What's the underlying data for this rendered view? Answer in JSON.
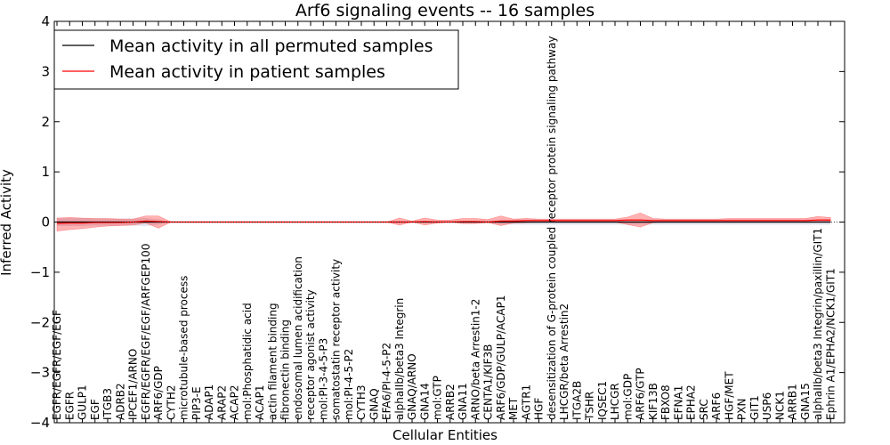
{
  "chart_data": {
    "type": "line",
    "title": "Arf6 signaling events -- 16 samples",
    "xlabel": "Cellular Entities",
    "ylabel": "Inferred Activity",
    "ylim": [
      -4,
      4
    ],
    "yticks": [
      -4,
      -3,
      -2,
      -1,
      0,
      1,
      2,
      3,
      4
    ],
    "legend_position": "top-left",
    "categories": [
      "EGFR/EGFR/EGF/EGF",
      "EGFR",
      "GULP1",
      "EGF",
      "ITGB3",
      "ADRB2",
      "IPCEF1/ARNO",
      "EGFR/EGFR/EGF/EGF/ARFGEP100",
      "ARF6/GDP",
      "CYTH2",
      "microtubule-based process",
      "PIP3-E",
      "ADAP1",
      "ARAP2",
      "ACAP2",
      "mol:Phosphatidic acid",
      "ACAP1",
      "actin filament binding",
      "fibronectin binding",
      "endosomal lumen acidification",
      "receptor agonist activity",
      "mol:PI-3-4-5-P3",
      "somatostatin receptor activity",
      "mol:PI-4-5-P2",
      "CYTH3",
      "GNAQ",
      "EFA6/PI-4-5-P2",
      "alphaIIb/beta3 Integrin",
      "GNAQ/ARNO",
      "GNA14",
      "mol:GTP",
      "ARRB2",
      "GNA11",
      "ARNO/beta Arrestin1-2",
      "CENTA1/KIF3B",
      "ARF6/GDP/GULP/ACAP1",
      "MET",
      "AGTR1",
      "HGF",
      "desensitization of G-protein coupled receptor protein signaling pathway",
      "LHCGR/beta Arrestin2",
      "ITGA2B",
      "TSHR",
      "IQSEC1",
      "LHCGR",
      "mol:GDP",
      "ARF6/GTP",
      "KIF13B",
      "FBXO8",
      "EFNA1",
      "EPHA2",
      "SRC",
      "ARF6",
      "HGF/MET",
      "PXN",
      "GIT1",
      "USP6",
      "NCK1",
      "ARRB1",
      "GNA15",
      "alphaIIb/beta3 Integrin/paxillin/GIT1",
      "Ephrin A1/EPHA2/NCK1/GIT1"
    ],
    "series": [
      {
        "name": "Mean activity in all permuted samples",
        "color": "#000000",
        "values": [
          0,
          0,
          0,
          0,
          0,
          0,
          0,
          0,
          0,
          0,
          0,
          0,
          0,
          0,
          0,
          0,
          0,
          0,
          0,
          0,
          0,
          0,
          0,
          0,
          0,
          0,
          0,
          0,
          0,
          0,
          0,
          0,
          0,
          0,
          0,
          0,
          0,
          0,
          0,
          0,
          0,
          0,
          0,
          0,
          0,
          0,
          0,
          0,
          0,
          0,
          0,
          0,
          0,
          0,
          0,
          0,
          0,
          0,
          0,
          0,
          0,
          0
        ]
      },
      {
        "name": "Mean activity in patient samples",
        "color": "#ff0000",
        "values": [
          -0.03,
          -0.02,
          -0.02,
          -0.01,
          -0.01,
          -0.01,
          0.0,
          0.02,
          0.01,
          0,
          0,
          0,
          0,
          0,
          0,
          0,
          0,
          0,
          0,
          0,
          0,
          0,
          0,
          0,
          0,
          0,
          0,
          0.0,
          0,
          0.01,
          0,
          0,
          0.01,
          0.01,
          0,
          0.02,
          0.02,
          0.03,
          0.03,
          0.03,
          0.03,
          0.03,
          0.03,
          0.03,
          0.03,
          0.04,
          0.04,
          0.03,
          0.03,
          0.03,
          0.03,
          0.03,
          0.03,
          0.03,
          0.03,
          0.03,
          0.03,
          0.03,
          0.03,
          0.03,
          0.04,
          0.04
        ],
        "band_lower": [
          -0.18,
          -0.15,
          -0.13,
          -0.1,
          -0.08,
          -0.07,
          -0.06,
          -0.02,
          -0.12,
          0,
          0,
          0,
          0,
          0,
          0,
          0,
          0,
          0,
          0,
          0,
          0,
          0,
          0,
          0,
          0,
          0,
          0,
          -0.06,
          0,
          -0.06,
          -0.02,
          0,
          -0.03,
          -0.03,
          -0.01,
          -0.07,
          -0.02,
          -0.01,
          0,
          0,
          0,
          0,
          0,
          0,
          0,
          -0.05,
          -0.1,
          -0.01,
          0,
          0,
          0,
          0,
          0,
          0,
          0,
          0,
          0,
          0,
          0,
          0,
          0,
          0
        ],
        "band_upper": [
          0.08,
          0.09,
          0.08,
          0.07,
          0.07,
          0.06,
          0.06,
          0.12,
          0.12,
          0,
          0,
          0,
          0,
          0,
          0,
          0,
          0,
          0,
          0,
          0,
          0,
          0,
          0,
          0,
          0,
          0,
          0,
          0.08,
          0.02,
          0.08,
          0.04,
          0.04,
          0.07,
          0.07,
          0.05,
          0.12,
          0.06,
          0.07,
          0.06,
          0.06,
          0.06,
          0.06,
          0.06,
          0.06,
          0.06,
          0.1,
          0.18,
          0.07,
          0.06,
          0.06,
          0.06,
          0.06,
          0.06,
          0.07,
          0.07,
          0.07,
          0.07,
          0.07,
          0.07,
          0.07,
          0.11,
          0.09
        ]
      }
    ],
    "permuted_band": {
      "color": "#c0c0d8",
      "lower": [
        -0.08,
        -0.08,
        -0.08,
        -0.07,
        -0.07,
        -0.07,
        -0.07,
        -0.08,
        -0.05,
        0,
        0,
        0,
        0,
        0,
        0,
        0,
        0,
        0,
        0,
        0,
        0,
        0,
        0,
        0,
        0,
        0,
        0,
        -0.02,
        0,
        -0.02,
        -0.02,
        0,
        -0.02,
        -0.02,
        -0.02,
        -0.04,
        -0.05,
        -0.05,
        -0.05,
        -0.05,
        -0.05,
        -0.05,
        -0.05,
        -0.05,
        -0.05,
        -0.05,
        -0.05,
        -0.05,
        -0.05,
        -0.05,
        -0.05,
        -0.05,
        -0.05,
        -0.05,
        -0.05,
        -0.05,
        -0.05,
        -0.05,
        -0.05,
        -0.05,
        -0.05,
        -0.05
      ],
      "upper": [
        0.08,
        0.08,
        0.08,
        0.07,
        0.07,
        0.07,
        0.07,
        0.08,
        0.05,
        0,
        0,
        0,
        0,
        0,
        0,
        0,
        0,
        0,
        0,
        0,
        0,
        0,
        0,
        0,
        0,
        0,
        0,
        0.02,
        0,
        0.02,
        0.02,
        0,
        0.02,
        0.02,
        0.02,
        0.04,
        0.05,
        0.05,
        0.05,
        0.05,
        0.05,
        0.05,
        0.05,
        0.05,
        0.05,
        0.05,
        0.05,
        0.05,
        0.05,
        0.05,
        0.05,
        0.05,
        0.05,
        0.05,
        0.05,
        0.05,
        0.05,
        0.05,
        0.05,
        0.05,
        0.05,
        0.05
      ]
    }
  }
}
